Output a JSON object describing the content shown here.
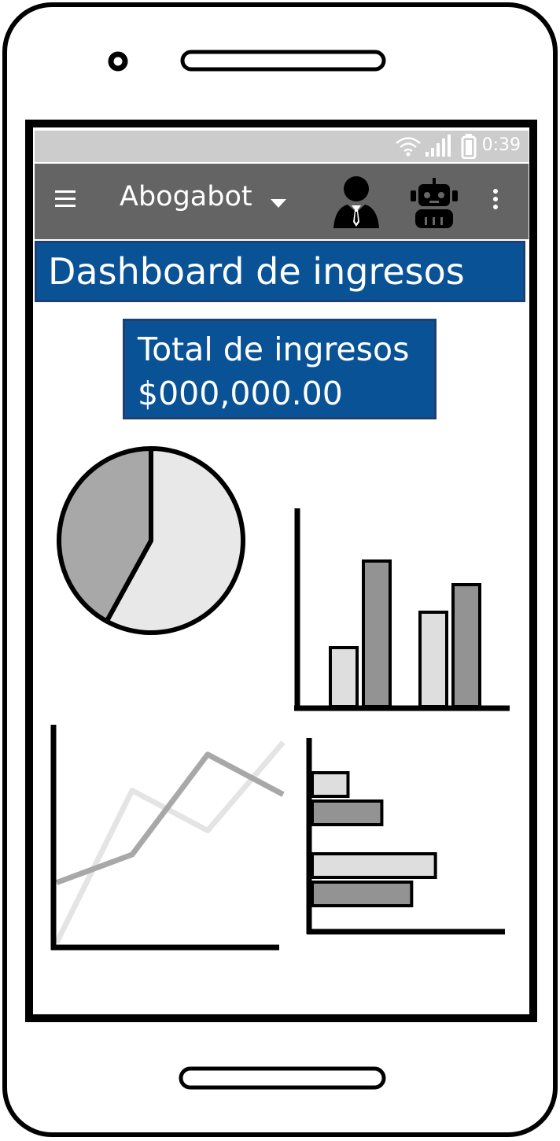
{
  "status_bar": {
    "time": "0:39"
  },
  "app_bar": {
    "menu_icon": "hamburger-menu-icon",
    "title": "Abogabot",
    "dropdown_icon": "caret-down-icon",
    "user_icon": "businessman-avatar-icon",
    "bot_icon": "robot-icon",
    "overflow_icon": "kebab-menu-icon"
  },
  "dashboard": {
    "title": "Dashboard de ingresos",
    "total_label": "Total de ingresos",
    "total_value": "$000,000.00"
  },
  "colors": {
    "status_bar": "#cccccc",
    "app_bar": "#646464",
    "banner": "#0a5296",
    "banner_border": "#1f3f73"
  },
  "chart_data": [
    {
      "type": "pie",
      "values": [
        58,
        42
      ],
      "colors": [
        "#e8e8e8",
        "#a8a8a8"
      ]
    },
    {
      "type": "bar",
      "categories": [
        "",
        ""
      ],
      "series": [
        {
          "values": [
            1.5,
            2.4
          ],
          "color": "#dedede"
        },
        {
          "values": [
            3.7,
            3.1
          ],
          "color": "#939393"
        }
      ],
      "ylim": [
        0,
        5
      ]
    },
    {
      "type": "line",
      "x": [
        0,
        1,
        2,
        3
      ],
      "series": [
        {
          "values": [
            0,
            3.8,
            2.8,
            5.0
          ],
          "color": "#e4e4e4"
        },
        {
          "values": [
            1.5,
            2.2,
            4.7,
            3.7
          ],
          "color": "#a8a8a8"
        }
      ],
      "ylim": [
        0,
        5.5
      ]
    },
    {
      "type": "bar",
      "orientation": "horizontal",
      "categories": [
        "",
        ""
      ],
      "series": [
        {
          "values": [
            1.8,
            6.2
          ],
          "color": "#dedede"
        },
        {
          "values": [
            3.5,
            5.0
          ],
          "color": "#939393"
        }
      ],
      "xlim": [
        0,
        9.5
      ]
    }
  ]
}
